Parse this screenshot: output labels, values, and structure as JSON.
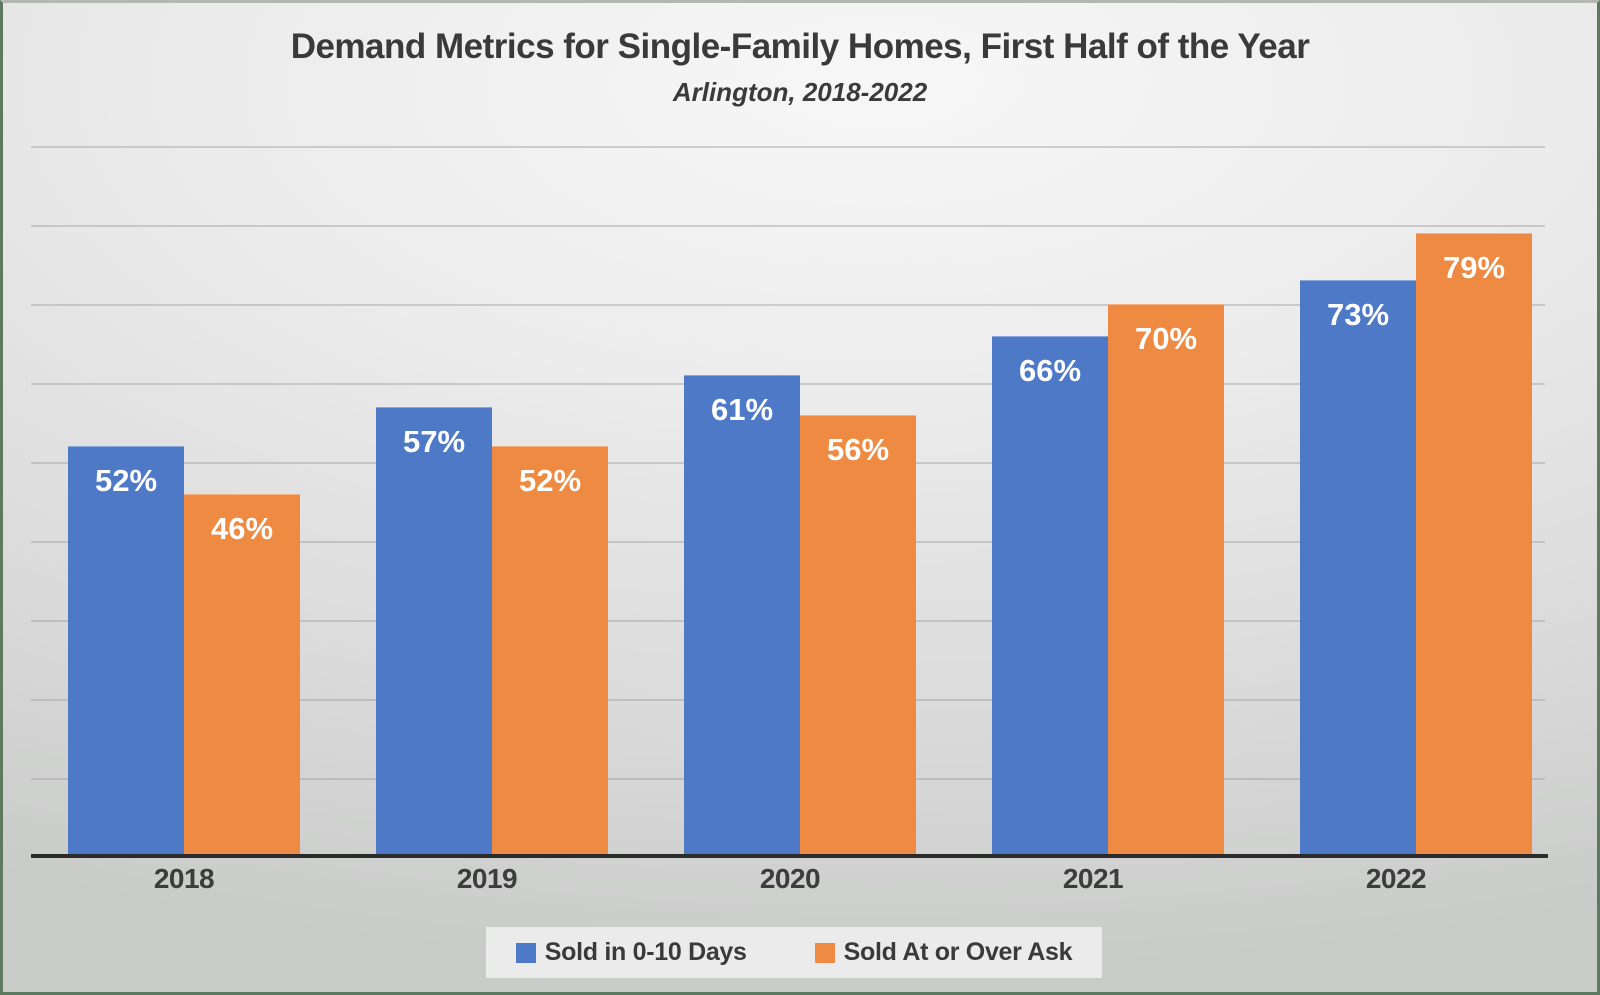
{
  "chart_data": {
    "type": "bar",
    "title": "Demand Metrics for Single-Family Homes, First Half of the Year",
    "subtitle": "Arlington, 2018-2022",
    "categories": [
      "2018",
      "2019",
      "2020",
      "2021",
      "2022"
    ],
    "series": [
      {
        "name": "Sold in 0-10 Days",
        "color": "#4d79c7",
        "values": [
          52,
          57,
          61,
          66,
          73
        ]
      },
      {
        "name": "Sold At or Over Ask",
        "color": "#ee8a42",
        "values": [
          46,
          52,
          56,
          70,
          79
        ]
      }
    ],
    "value_suffix": "%",
    "ylim": [
      0,
      90
    ],
    "gridline_interval": 10,
    "grid": true,
    "legend_position": "bottom",
    "colors": {
      "axis_line": "#2b2b2b",
      "gridline": "#a0a0a0",
      "text": "#3a3a3a",
      "value_label": "#ffffff",
      "border": "#5d7a60",
      "legend_background": "#ebebeb"
    }
  }
}
